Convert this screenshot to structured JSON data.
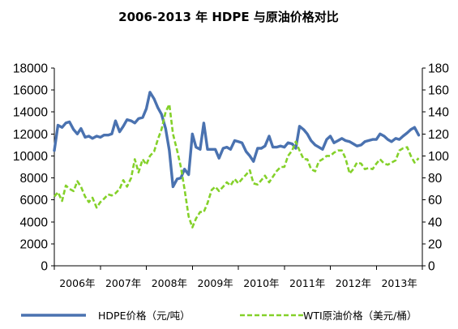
{
  "chart_data": {
    "type": "line",
    "title": "2006-2013 年 HDPE 与原油价格对比",
    "x_categories": [
      "2006年",
      "2007年",
      "2008年",
      "2009年",
      "2010年",
      "2011年",
      "2012年",
      "2013年"
    ],
    "x_range_years": [
      2006,
      2014
    ],
    "y_left": {
      "min": 0,
      "max": 18000,
      "step": 2000,
      "ticks": [
        "0",
        "2000",
        "4000",
        "6000",
        "8000",
        "10000",
        "12000",
        "14000",
        "16000",
        "18000"
      ]
    },
    "y_right": {
      "min": 0,
      "max": 180,
      "step": 20,
      "ticks": [
        "0",
        "20",
        "40",
        "60",
        "80",
        "100",
        "120",
        "140",
        "160",
        "180"
      ]
    },
    "legend_position": "bottom",
    "grid": false,
    "series": [
      {
        "name": "HDPE价格（元/吨）",
        "axis": "left",
        "color": "#4a72b0",
        "style": "solid",
        "x": [
          2006.0,
          2006.08,
          2006.17,
          2006.25,
          2006.33,
          2006.42,
          2006.5,
          2006.58,
          2006.67,
          2006.75,
          2006.83,
          2006.92,
          2007.0,
          2007.08,
          2007.17,
          2007.25,
          2007.33,
          2007.42,
          2007.5,
          2007.58,
          2007.67,
          2007.75,
          2007.83,
          2007.92,
          2008.0,
          2008.08,
          2008.17,
          2008.25,
          2008.33,
          2008.42,
          2008.5,
          2008.58,
          2008.67,
          2008.75,
          2008.83,
          2008.92,
          2009.0,
          2009.08,
          2009.17,
          2009.25,
          2009.33,
          2009.42,
          2009.5,
          2009.58,
          2009.67,
          2009.75,
          2009.83,
          2009.92,
          2010.0,
          2010.08,
          2010.17,
          2010.25,
          2010.33,
          2010.42,
          2010.5,
          2010.58,
          2010.67,
          2010.75,
          2010.83,
          2010.92,
          2011.0,
          2011.08,
          2011.17,
          2011.25,
          2011.33,
          2011.42,
          2011.5,
          2011.58,
          2011.67,
          2011.75,
          2011.83,
          2011.92,
          2012.0,
          2012.08,
          2012.17,
          2012.25,
          2012.33,
          2012.42,
          2012.5,
          2012.58,
          2012.67,
          2012.75,
          2012.83,
          2012.92,
          2013.0,
          2013.08,
          2013.17,
          2013.25,
          2013.33,
          2013.42,
          2013.5,
          2013.58,
          2013.67,
          2013.75,
          2013.83,
          2013.92
        ],
        "values": [
          10500,
          12800,
          12600,
          13000,
          13100,
          12400,
          12000,
          12500,
          11700,
          11800,
          11600,
          11800,
          11700,
          11900,
          11900,
          12000,
          13200,
          12200,
          12700,
          13300,
          13200,
          13000,
          13400,
          13500,
          14300,
          15800,
          15200,
          14400,
          13800,
          12500,
          10500,
          7200,
          7900,
          8000,
          8800,
          8300,
          12000,
          10800,
          10600,
          13000,
          10600,
          10600,
          10600,
          9800,
          10700,
          10800,
          10600,
          11400,
          11300,
          11200,
          10400,
          10000,
          9500,
          10700,
          10700,
          10900,
          11800,
          10800,
          10800,
          10900,
          10800,
          11200,
          11100,
          10700,
          12700,
          12400,
          12000,
          11400,
          11000,
          10800,
          10600,
          11500,
          11800,
          11200,
          11400,
          11600,
          11400,
          11300,
          11100,
          10900,
          11000,
          11300,
          11400,
          11500,
          11500,
          12000,
          11800,
          11500,
          11300,
          11600,
          11500,
          11800,
          12100,
          12400,
          12600,
          11900
        ]
      },
      {
        "name": "WTI原油价格（美元/桶）",
        "axis": "right",
        "color": "#84d12a",
        "style": "dashed",
        "x": [
          2006.0,
          2006.08,
          2006.17,
          2006.25,
          2006.33,
          2006.42,
          2006.5,
          2006.58,
          2006.67,
          2006.75,
          2006.83,
          2006.92,
          2007.0,
          2007.08,
          2007.17,
          2007.25,
          2007.33,
          2007.42,
          2007.5,
          2007.58,
          2007.67,
          2007.75,
          2007.83,
          2007.92,
          2008.0,
          2008.08,
          2008.17,
          2008.25,
          2008.33,
          2008.42,
          2008.5,
          2008.58,
          2008.67,
          2008.75,
          2008.83,
          2008.92,
          2009.0,
          2009.08,
          2009.17,
          2009.25,
          2009.33,
          2009.42,
          2009.5,
          2009.58,
          2009.67,
          2009.75,
          2009.83,
          2009.92,
          2010.0,
          2010.08,
          2010.17,
          2010.25,
          2010.33,
          2010.42,
          2010.5,
          2010.58,
          2010.67,
          2010.75,
          2010.83,
          2010.92,
          2011.0,
          2011.08,
          2011.17,
          2011.25,
          2011.33,
          2011.42,
          2011.5,
          2011.58,
          2011.67,
          2011.75,
          2011.83,
          2011.92,
          2012.0,
          2012.08,
          2012.17,
          2012.25,
          2012.33,
          2012.42,
          2012.5,
          2012.58,
          2012.67,
          2012.75,
          2012.83,
          2012.92,
          2013.0,
          2013.08,
          2013.17,
          2013.25,
          2013.33,
          2013.42,
          2013.5,
          2013.58,
          2013.67,
          2013.75,
          2013.83,
          2013.92
        ],
        "values": [
          63,
          67,
          59,
          73,
          70,
          68,
          77,
          72,
          63,
          58,
          62,
          53,
          58,
          61,
          65,
          64,
          66,
          70,
          78,
          72,
          80,
          97,
          85,
          97,
          92,
          100,
          104,
          115,
          124,
          140,
          147,
          120,
          105,
          90,
          70,
          45,
          35,
          43,
          49,
          49,
          57,
          69,
          72,
          68,
          72,
          76,
          73,
          79,
          75,
          79,
          83,
          87,
          75,
          74,
          78,
          82,
          76,
          81,
          86,
          90,
          90,
          100,
          105,
          113,
          105,
          97,
          97,
          88,
          86,
          95,
          97,
          100,
          100,
          103,
          105,
          105,
          98,
          84,
          88,
          94,
          93,
          88,
          89,
          88,
          93,
          97,
          93,
          92,
          94,
          96,
          105,
          107,
          108,
          100,
          94,
          98
        ]
      }
    ]
  }
}
